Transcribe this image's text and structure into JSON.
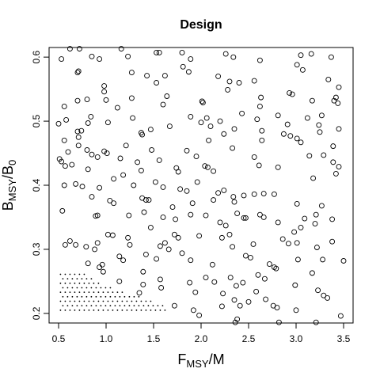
{
  "chart_data": {
    "type": "scatter",
    "title": "Design",
    "xlabel": {
      "main": "F",
      "sub": "MSY",
      "tail": "/M"
    },
    "ylabel": {
      "main": "B",
      "sub": "MSY",
      "tail": "/B",
      "sub2": "0"
    },
    "xlim": [
      0.4,
      3.6
    ],
    "ylim": [
      0.185,
      0.615
    ],
    "xticks": [
      0.5,
      {
        "value": 1,
        "label": "1.0"
      },
      1.5,
      {
        "value": 2,
        "label": "2.0"
      },
      2.5,
      {
        "value": 3,
        "label": "3.0"
      },
      3.5
    ],
    "yticks": [
      0.2,
      0.3,
      0.4,
      0.5,
      0.6
    ],
    "grid": false,
    "series": [
      {
        "marker": "circle",
        "color": "#000000",
        "x": [
          0.53,
          0.62,
          0.72,
          0.85,
          0.93,
          1.16,
          1.23,
          1.53,
          1.56,
          1.8,
          1.89,
          2.26,
          2.34,
          2.62,
          3.01,
          3.05,
          3.16,
          3.37,
          0.7,
          0.71,
          1.27,
          1.43,
          1.62,
          1.81,
          1.87,
          2.18,
          2.4,
          2.56,
          3.07,
          3.45,
          3.34,
          0.56,
          0.7,
          0.8,
          0.98,
          0.98,
          1.0,
          1.12,
          1.27,
          1.53,
          1.64,
          1.6,
          2.01,
          2.02,
          2.3,
          2.28,
          2.63,
          2.62,
          2.93,
          2.96,
          3.17,
          3.4,
          3.42,
          3.44,
          0.5,
          0.58,
          0.7,
          0.71,
          0.74,
          0.84,
          0.81,
          1.02,
          1.28,
          1.37,
          1.38,
          1.47,
          1.67,
          1.89,
          2.0,
          2.06,
          2.1,
          2.2,
          2.24,
          2.08,
          2.35,
          2.43,
          2.59,
          2.64,
          2.64,
          2.81,
          2.91,
          2.87,
          2.94,
          3.01,
          3.05,
          3.12,
          3.24,
          3.25,
          3.39,
          3.45,
          3.27,
          0.51,
          0.53,
          0.57,
          0.6,
          0.64,
          0.56,
          0.71,
          0.8,
          0.81,
          0.85,
          0.98,
          1.01,
          0.91,
          1.15,
          1.21,
          1.48,
          1.33,
          1.37,
          1.56,
          1.76,
          1.74,
          1.85,
          1.95,
          2.04,
          2.07,
          2.13,
          2.33,
          2.56,
          2.61,
          2.81,
          3.14,
          3.29,
          3.39,
          3.45,
          3.42,
          3.18,
          0.56,
          0.68,
          0.75,
          0.85,
          0.93,
          1.04,
          1.08,
          1.18,
          1.29,
          1.38,
          1.42,
          1.45,
          1.52,
          1.6,
          1.78,
          1.85,
          1.96,
          2.18,
          2.24,
          2.34,
          2.45,
          2.56,
          2.66,
          2.77,
          2.35,
          1.91,
          3.01,
          3.27,
          2.13,
          1.7,
          0.54,
          0.89,
          0.91,
          1.08,
          1.24,
          1.4,
          1.47,
          1.6,
          1.73,
          1.89,
          2.05,
          2.2,
          2.26,
          2.38,
          2.45,
          2.47,
          2.62,
          2.66,
          2.81,
          3.09,
          3.21,
          3.2,
          3.38,
          3.05,
          2.98,
          0.57,
          0.62,
          0.68,
          0.79,
          0.88,
          0.91,
          1.02,
          1.07,
          1.23,
          1.25,
          1.57,
          1.62,
          1.66,
          1.72,
          1.76,
          1.98,
          2.22,
          2.3,
          2.33,
          2.55,
          2.86,
          2.92,
          3.01,
          3.38,
          3.22,
          0.81,
          0.93,
          0.97,
          0.96,
          1.14,
          1.18,
          1.39,
          1.42,
          1.53,
          1.8,
          1.89,
          2.12,
          2.47,
          2.52,
          2.72,
          2.77,
          2.79,
          3.02,
          3.28,
          3.5,
          2.6,
          1.14,
          1.39,
          1.57,
          1.88,
          2.05,
          2.14,
          2.31,
          2.37,
          2.44,
          2.67,
          3.17,
          2.99,
          3.23,
          3.29,
          3.33,
          1.35,
          1.58,
          1.94,
          2.23,
          2.58,
          2.35,
          2.68,
          2.5,
          1.72,
          1.92,
          2.22,
          2.41,
          2.76,
          2.8,
          3.0,
          3.47,
          1.98,
          2.38,
          2.36,
          2.82,
          3.21
        ],
        "values": [
          0.597,
          0.613,
          0.613,
          0.601,
          0.597,
          0.613,
          0.601,
          0.607,
          0.607,
          0.607,
          0.597,
          0.605,
          0.6,
          0.595,
          0.588,
          0.603,
          0.605,
          0.6,
          0.576,
          0.578,
          0.576,
          0.571,
          0.571,
          0.585,
          0.577,
          0.57,
          0.56,
          0.563,
          0.58,
          0.553,
          0.565,
          0.523,
          0.532,
          0.534,
          0.555,
          0.546,
          0.533,
          0.521,
          0.536,
          0.56,
          0.539,
          0.526,
          0.531,
          0.529,
          0.562,
          0.549,
          0.537,
          0.523,
          0.544,
          0.542,
          0.532,
          0.532,
          0.537,
          0.528,
          0.496,
          0.502,
          0.484,
          0.475,
          0.485,
          0.507,
          0.497,
          0.498,
          0.505,
          0.482,
          0.479,
          0.487,
          0.492,
          0.507,
          0.498,
          0.505,
          0.492,
          0.5,
          0.48,
          0.47,
          0.488,
          0.512,
          0.503,
          0.485,
          0.47,
          0.509,
          0.495,
          0.48,
          0.477,
          0.473,
          0.467,
          0.505,
          0.494,
          0.483,
          0.461,
          0.488,
          0.509,
          0.441,
          0.437,
          0.43,
          0.452,
          0.432,
          0.47,
          0.462,
          0.455,
          0.425,
          0.448,
          0.453,
          0.45,
          0.444,
          0.442,
          0.462,
          0.455,
          0.436,
          0.423,
          0.439,
          0.421,
          0.427,
          0.454,
          0.445,
          0.43,
          0.428,
          0.422,
          0.458,
          0.444,
          0.431,
          0.428,
          0.446,
          0.447,
          0.436,
          0.429,
          0.418,
          0.411,
          0.4,
          0.402,
          0.398,
          0.382,
          0.396,
          0.376,
          0.41,
          0.416,
          0.4,
          0.38,
          0.377,
          0.377,
          0.405,
          0.397,
          0.394,
          0.391,
          0.405,
          0.388,
          0.392,
          0.382,
          0.384,
          0.386,
          0.387,
          0.386,
          0.374,
          0.372,
          0.371,
          0.368,
          0.377,
          0.366,
          0.36,
          0.352,
          0.353,
          0.372,
          0.353,
          0.358,
          0.334,
          0.35,
          0.347,
          0.354,
          0.353,
          0.342,
          0.337,
          0.356,
          0.349,
          0.349,
          0.354,
          0.35,
          0.342,
          0.348,
          0.354,
          0.34,
          0.347,
          0.334,
          0.327,
          0.307,
          0.313,
          0.307,
          0.304,
          0.3,
          0.31,
          0.323,
          0.322,
          0.318,
          0.307,
          0.305,
          0.31,
          0.3,
          0.323,
          0.318,
          0.321,
          0.318,
          0.323,
          0.304,
          0.308,
          0.316,
          0.309,
          0.31,
          0.312,
          0.303,
          0.278,
          0.272,
          0.265,
          0.276,
          0.289,
          0.283,
          0.265,
          0.292,
          0.285,
          0.294,
          0.283,
          0.276,
          0.29,
          0.287,
          0.277,
          0.272,
          0.27,
          0.284,
          0.284,
          0.282,
          0.26,
          0.25,
          0.245,
          0.253,
          0.248,
          0.256,
          0.249,
          0.256,
          0.243,
          0.248,
          0.254,
          0.263,
          0.244,
          0.236,
          0.228,
          0.224,
          0.232,
          0.24,
          0.233,
          0.231,
          0.234,
          0.221,
          0.222,
          0.218,
          0.212,
          0.205,
          0.211,
          0.212,
          0.212,
          0.209,
          0.205,
          0.196,
          0.197,
          0.191,
          0.186,
          0.186,
          0.186
        ]
      },
      {
        "marker": "dot",
        "color": "#000000",
        "x": [
          0.52,
          0.57,
          0.62,
          0.67,
          0.72,
          0.77,
          0.82,
          0.87,
          0.92,
          0.97,
          1.02,
          1.07,
          1.12,
          1.17,
          1.22,
          1.27,
          1.32,
          1.37,
          1.42,
          1.47,
          1.52,
          1.57,
          1.62,
          0.545,
          0.595,
          0.645,
          0.695,
          0.745,
          0.795,
          0.845,
          0.895,
          0.945,
          0.995,
          1.045,
          1.095,
          1.145,
          1.195,
          1.245,
          1.295,
          1.345,
          1.395,
          1.445,
          1.495,
          1.545,
          1.595,
          0.52,
          0.57,
          0.62,
          0.67,
          0.72,
          0.77,
          0.82,
          0.87,
          0.92,
          0.97,
          1.02,
          1.07,
          1.12,
          1.17,
          1.22,
          1.27,
          1.32,
          1.37,
          1.42,
          1.47,
          0.545,
          0.595,
          0.645,
          0.695,
          0.745,
          0.795,
          0.845,
          0.895,
          0.945,
          0.995,
          1.045,
          1.095,
          1.145,
          1.195,
          1.245,
          1.295,
          1.345,
          0.52,
          0.57,
          0.62,
          0.67,
          0.72,
          0.77,
          0.82,
          0.87,
          0.92,
          0.97,
          1.02,
          1.07,
          1.12,
          1.17,
          0.545,
          0.595,
          0.645,
          0.695,
          0.745,
          0.795,
          0.845,
          0.895,
          0.945,
          0.995,
          1.045,
          0.52,
          0.57,
          0.62,
          0.67,
          0.72,
          0.77,
          0.82,
          0.87,
          0.92,
          0.545,
          0.595,
          0.645,
          0.695,
          0.745,
          0.795,
          0.845,
          0.52,
          0.57,
          0.62,
          0.67,
          0.72,
          0.77
        ],
        "values": [
          0.205,
          0.205,
          0.205,
          0.205,
          0.205,
          0.205,
          0.205,
          0.205,
          0.205,
          0.205,
          0.205,
          0.205,
          0.205,
          0.205,
          0.205,
          0.205,
          0.205,
          0.205,
          0.205,
          0.205,
          0.205,
          0.205,
          0.205,
          0.212,
          0.212,
          0.212,
          0.212,
          0.212,
          0.212,
          0.212,
          0.212,
          0.212,
          0.212,
          0.212,
          0.212,
          0.212,
          0.212,
          0.212,
          0.212,
          0.212,
          0.212,
          0.212,
          0.212,
          0.212,
          0.212,
          0.219,
          0.219,
          0.219,
          0.219,
          0.219,
          0.219,
          0.219,
          0.219,
          0.219,
          0.219,
          0.219,
          0.219,
          0.219,
          0.219,
          0.219,
          0.219,
          0.219,
          0.219,
          0.219,
          0.219,
          0.226,
          0.226,
          0.226,
          0.226,
          0.226,
          0.226,
          0.226,
          0.226,
          0.226,
          0.226,
          0.226,
          0.226,
          0.226,
          0.226,
          0.226,
          0.226,
          0.226,
          0.233,
          0.233,
          0.233,
          0.233,
          0.233,
          0.233,
          0.233,
          0.233,
          0.233,
          0.233,
          0.233,
          0.233,
          0.233,
          0.233,
          0.24,
          0.24,
          0.24,
          0.24,
          0.24,
          0.24,
          0.24,
          0.24,
          0.24,
          0.24,
          0.24,
          0.247,
          0.247,
          0.247,
          0.247,
          0.247,
          0.247,
          0.247,
          0.247,
          0.247,
          0.254,
          0.254,
          0.254,
          0.254,
          0.254,
          0.254,
          0.254,
          0.261,
          0.261,
          0.261,
          0.261,
          0.261,
          0.261
        ]
      }
    ]
  }
}
